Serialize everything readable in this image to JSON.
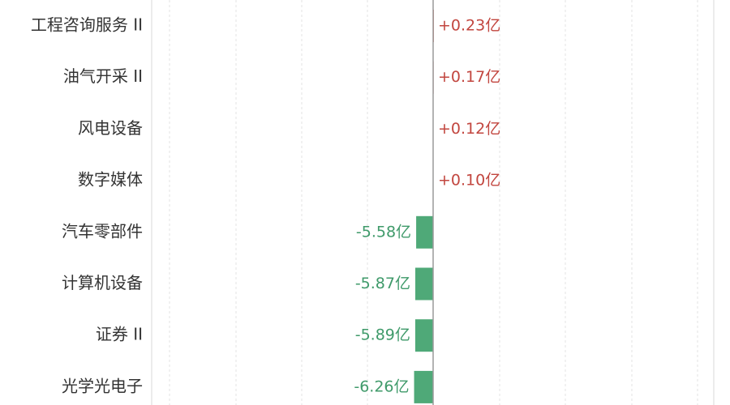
{
  "chart_data": {
    "type": "bar",
    "orientation": "horizontal",
    "categories": [
      "工程咨询服务 II",
      "油气开采 II",
      "风电设备",
      "数字媒体",
      "汽车零部件",
      "计算机设备",
      "证券 II",
      "光学光电子"
    ],
    "values": [
      0.23,
      0.17,
      0.12,
      0.1,
      -5.58,
      -5.87,
      -5.89,
      -6.26
    ],
    "value_labels": [
      "+0.23亿",
      "+0.17亿",
      "+0.12亿",
      "+0.10亿",
      "-5.58亿",
      "-5.87亿",
      "-5.89亿",
      "-6.26亿"
    ],
    "unit": "亿",
    "grid": true,
    "colors": {
      "positive": "#c2463f",
      "negative": "#4fa978",
      "negative_label": "#3f9a6a",
      "zero_line": "#9a9a9a",
      "grid": "#e3e3e3",
      "category_text": "#333333"
    }
  }
}
